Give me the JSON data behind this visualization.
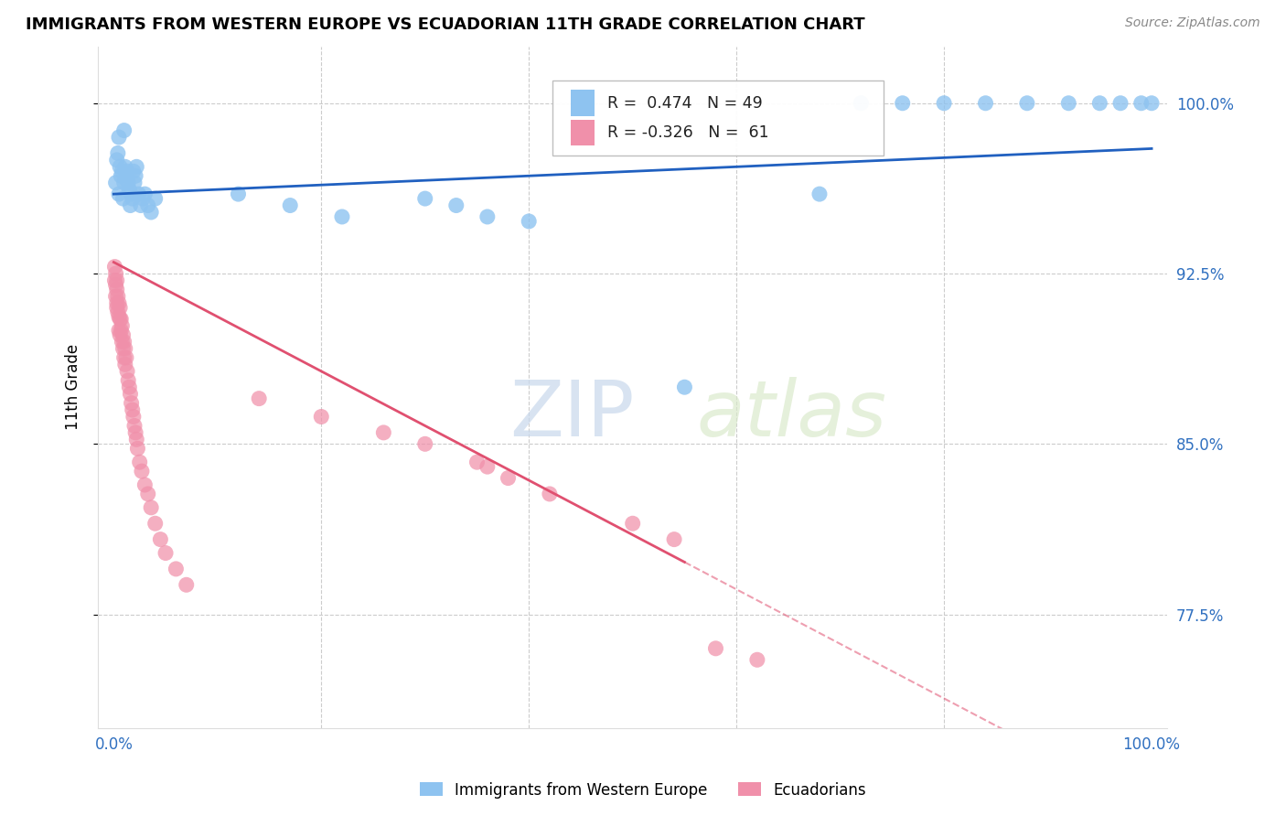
{
  "title": "IMMIGRANTS FROM WESTERN EUROPE VS ECUADORIAN 11TH GRADE CORRELATION CHART",
  "source": "Source: ZipAtlas.com",
  "ylabel": "11th Grade",
  "blue_R": 0.474,
  "blue_N": 49,
  "pink_R": -0.326,
  "pink_N": 61,
  "blue_color": "#8ec3f0",
  "pink_color": "#f090aa",
  "blue_line_color": "#2060c0",
  "pink_line_color": "#e05070",
  "watermark_zip": "ZIP",
  "watermark_atlas": "atlas",
  "legend_label_blue": "Immigrants from Western Europe",
  "legend_label_pink": "Ecuadorians",
  "xlim": [
    -0.015,
    1.015
  ],
  "ylim": [
    0.725,
    1.025
  ],
  "yticks": [
    0.775,
    0.85,
    0.925,
    1.0
  ],
  "yticklabels": [
    "77.5%",
    "85.0%",
    "92.5%",
    "100.0%"
  ],
  "xticks": [
    0.0,
    1.0
  ],
  "xticklabels": [
    "0.0%",
    "100.0%"
  ]
}
